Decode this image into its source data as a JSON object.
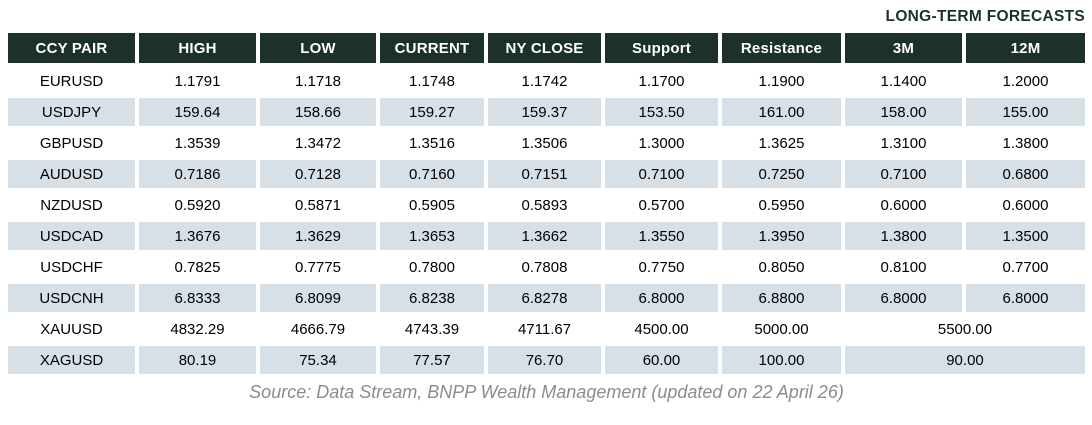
{
  "chart_data": {
    "type": "table",
    "title": "LONG-TERM FORECASTS",
    "columns": [
      "CCY PAIR",
      "HIGH",
      "LOW",
      "CURRENT",
      "NY CLOSE",
      "Support",
      "Resistance",
      "3M",
      "12M"
    ],
    "rows": [
      {
        "pair": "EURUSD",
        "high": "1.1791",
        "low": "1.1718",
        "current": "1.1748",
        "ny_close": "1.1742",
        "support": "1.1700",
        "resistance": "1.1900",
        "m3": "1.1400",
        "m12": "1.2000"
      },
      {
        "pair": "USDJPY",
        "high": "159.64",
        "low": "158.66",
        "current": "159.27",
        "ny_close": "159.37",
        "support": "153.50",
        "resistance": "161.00",
        "m3": "158.00",
        "m12": "155.00"
      },
      {
        "pair": "GBPUSD",
        "high": "1.3539",
        "low": "1.3472",
        "current": "1.3516",
        "ny_close": "1.3506",
        "support": "1.3000",
        "resistance": "1.3625",
        "m3": "1.3100",
        "m12": "1.3800"
      },
      {
        "pair": "AUDUSD",
        "high": "0.7186",
        "low": "0.7128",
        "current": "0.7160",
        "ny_close": "0.7151",
        "support": "0.7100",
        "resistance": "0.7250",
        "m3": "0.7100",
        "m12": "0.6800"
      },
      {
        "pair": "NZDUSD",
        "high": "0.5920",
        "low": "0.5871",
        "current": "0.5905",
        "ny_close": "0.5893",
        "support": "0.5700",
        "resistance": "0.5950",
        "m3": "0.6000",
        "m12": "0.6000"
      },
      {
        "pair": "USDCAD",
        "high": "1.3676",
        "low": "1.3629",
        "current": "1.3653",
        "ny_close": "1.3662",
        "support": "1.3550",
        "resistance": "1.3950",
        "m3": "1.3800",
        "m12": "1.3500"
      },
      {
        "pair": "USDCHF",
        "high": "0.7825",
        "low": "0.7775",
        "current": "0.7800",
        "ny_close": "0.7808",
        "support": "0.7750",
        "resistance": "0.8050",
        "m3": "0.8100",
        "m12": "0.7700"
      },
      {
        "pair": "USDCNH",
        "high": "6.8333",
        "low": "6.8099",
        "current": "6.8238",
        "ny_close": "6.8278",
        "support": "6.8000",
        "resistance": "6.8800",
        "m3": "6.8000",
        "m12": "6.8000"
      },
      {
        "pair": "XAUUSD",
        "high": "4832.29",
        "low": "4666.79",
        "current": "4743.39",
        "ny_close": "4711.67",
        "support": "4500.00",
        "resistance": "5000.00",
        "long_term": "5500.00"
      },
      {
        "pair": "XAGUSD",
        "high": "80.19",
        "low": "75.34",
        "current": "77.57",
        "ny_close": "76.70",
        "support": "60.00",
        "resistance": "100.00",
        "long_term": "90.00"
      }
    ],
    "source": "Source: Data Stream, BNPP Wealth Management (updated on 22 April 26)",
    "layout": {
      "merged_long_term_rows": [
        "XAUUSD",
        "XAGUSD"
      ],
      "stripe_pattern": "even data rows shaded"
    }
  },
  "colors": {
    "header_bg": "#1c312b",
    "header_text": "#ffffff",
    "row_stripe": "#d7e0e7",
    "title_text": "#1c312b",
    "source_text": "#8c8c8c"
  }
}
